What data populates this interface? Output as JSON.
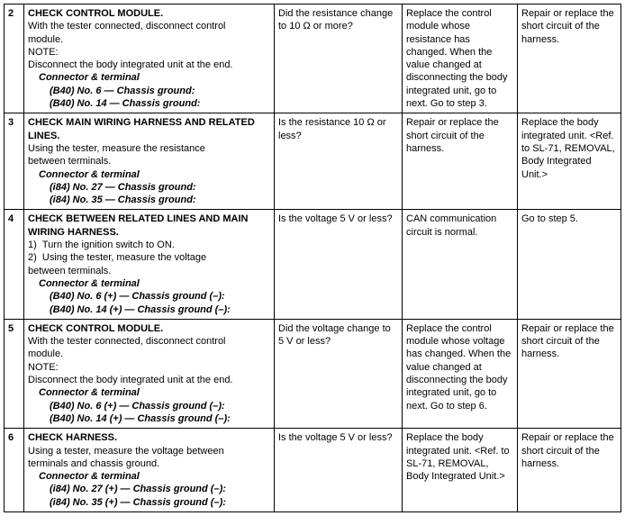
{
  "rows": [
    {
      "num": "2",
      "step_title": "CHECK CONTROL MODULE.",
      "step_body": [
        "With the tester connected, disconnect control",
        "module.",
        "NOTE:",
        "Disconnect the body integrated unit at the end."
      ],
      "conn_header": "Connector & terminal",
      "conn_lines": [
        "(B40) No. 6 — Chassis ground:",
        "(B40) No. 14 — Chassis ground:"
      ],
      "check": "Did the resistance change to 10 Ω or more?",
      "yes": "Replace the control module whose resistance has changed. When the value changed at disconnecting the body integrated unit, go to next. Go to step 3.",
      "no": "Repair or replace the short circuit of the harness."
    },
    {
      "num": "3",
      "step_title": "CHECK MAIN WIRING HARNESS AND RELATED LINES.",
      "step_body": [
        "Using the tester, measure the resistance",
        "between terminals."
      ],
      "conn_header": "Connector & terminal",
      "conn_lines": [
        "(i84) No. 27 — Chassis ground:",
        "(i84) No. 35 — Chassis ground:"
      ],
      "check": "Is the resistance 10 Ω or less?",
      "yes": "Repair or replace the short circuit of the harness.",
      "no": "Replace the body integrated unit. <Ref. to SL-71, REMOVAL, Body Integrated Unit.>"
    },
    {
      "num": "4",
      "step_title": "CHECK BETWEEN RELATED LINES AND MAIN WIRING HARNESS.",
      "step_body": [
        "1)  Turn the ignition switch to ON.",
        "2)  Using the tester, measure the voltage",
        "between terminals."
      ],
      "conn_header": "Connector & terminal",
      "conn_lines": [
        "(B40) No. 6 (+) — Chassis ground (–):",
        "(B40) No. 14 (+) — Chassis ground (–):"
      ],
      "check": "Is the voltage 5 V or less?",
      "yes": "CAN communication circuit is normal.",
      "no": "Go to step 5."
    },
    {
      "num": "5",
      "step_title": "CHECK CONTROL MODULE.",
      "step_body": [
        "With the tester connected, disconnect control",
        "module.",
        "NOTE:",
        "Disconnect the body integrated unit at the end."
      ],
      "conn_header": "Connector & terminal",
      "conn_lines": [
        "(B40) No. 6 (+) — Chassis ground (–):",
        "(B40) No. 14 (+) — Chassis ground (–):"
      ],
      "check": "Did the voltage change to 5 V or less?",
      "yes": "Replace the control module whose voltage has changed. When the value changed at disconnecting the body integrated unit, go to next. Go to step 6.",
      "no": "Repair or replace the short circuit of the harness."
    },
    {
      "num": "6",
      "step_title": "CHECK HARNESS.",
      "step_body": [
        "Using a tester, measure the voltage between",
        "terminals and chassis ground."
      ],
      "conn_header": "Connector & terminal",
      "conn_lines": [
        "(i84) No. 27 (+) — Chassis ground (–):",
        "(i84) No. 35 (+) — Chassis ground (–):"
      ],
      "check": "Is the voltage 5 V or less?",
      "yes": "Replace the body integrated unit. <Ref. to SL-71, REMOVAL, Body Integrated Unit.>",
      "no": "Repair or replace the short circuit of the harness."
    }
  ]
}
